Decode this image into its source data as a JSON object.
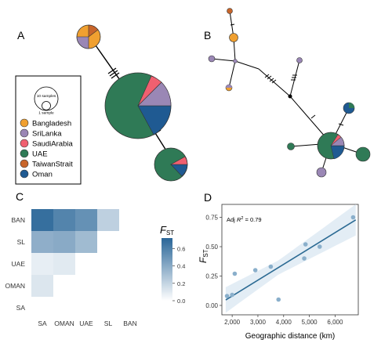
{
  "panels": {
    "a": {
      "label": "A"
    },
    "b": {
      "label": "B"
    },
    "c": {
      "label": "C"
    },
    "d": {
      "label": "D"
    }
  },
  "size_key": {
    "large_label": "10 samples",
    "small_label": "1 sample"
  },
  "colors": {
    "Bangladesh": "#F0A030",
    "SriLanka": "#9A87B5",
    "SaudiArabia": "#F06070",
    "UAE": "#2F7A56",
    "TaiwanStrait": "#C8652A",
    "Oman": "#1F5A92"
  },
  "legend": {
    "items": [
      {
        "name": "Bangladesh",
        "color": "#F0A030"
      },
      {
        "name": "SriLanka",
        "color": "#9A87B5"
      },
      {
        "name": "SaudiArabia",
        "color": "#F06070"
      },
      {
        "name": "UAE",
        "color": "#2F7A56"
      },
      {
        "name": "TaiwanStrait",
        "color": "#C8652A"
      },
      {
        "name": "Oman",
        "color": "#1F5A92"
      }
    ]
  },
  "chart_data": [
    {
      "type": "heatmap",
      "panel": "C",
      "rows": [
        "BAN",
        "SL",
        "UAE",
        "OMAN",
        "SA"
      ],
      "columns": [
        "SA",
        "OMAN",
        "UAE",
        "SL",
        "BAN"
      ],
      "values": [
        [
          0.68,
          0.58,
          0.52,
          0.22,
          null
        ],
        [
          0.38,
          0.4,
          0.32,
          null,
          null
        ],
        [
          0.08,
          0.1,
          null,
          null,
          null
        ],
        [
          0.12,
          null,
          null,
          null,
          null
        ],
        [
          null,
          null,
          null,
          null,
          null
        ]
      ],
      "colorbar": {
        "title_main": "F",
        "title_sub": "ST",
        "ticks": [
          "0.6",
          "0.4",
          "0.2",
          "0.0"
        ],
        "tick_values": [
          0.6,
          0.4,
          0.2,
          0.0
        ],
        "range": [
          0,
          0.72
        ]
      }
    },
    {
      "type": "scatter",
      "panel": "D",
      "x": [
        1800,
        2000,
        2100,
        2900,
        3500,
        3800,
        4800,
        4850,
        5400,
        6700
      ],
      "y": [
        0.08,
        0.09,
        0.27,
        0.3,
        0.33,
        0.05,
        0.4,
        0.52,
        0.5,
        0.75
      ],
      "xlabel": "Geographic distance (km)",
      "ylabel_main": "F",
      "ylabel_sub": "ST",
      "xlim": [
        1600,
        6900
      ],
      "ylim": [
        -0.08,
        0.86
      ],
      "xticks": [
        "2,000",
        "3,000",
        "4,000",
        "5,000",
        "6,000"
      ],
      "xtick_values": [
        2000,
        3000,
        4000,
        5000,
        6000
      ],
      "yticks": [
        "0.00",
        "0.25",
        "0.50",
        "0.75"
      ],
      "ytick_values": [
        0,
        0.25,
        0.5,
        0.75
      ],
      "annotation_prefix": "Adj ",
      "annotation_r": "R",
      "annotation_sup": "2",
      "annotation_value": " = 0.79",
      "fit": {
        "slope": 0.000135,
        "intercept": -0.19
      },
      "point_color": "#8AAFCB",
      "line_color": "#2B6A93"
    }
  ]
}
